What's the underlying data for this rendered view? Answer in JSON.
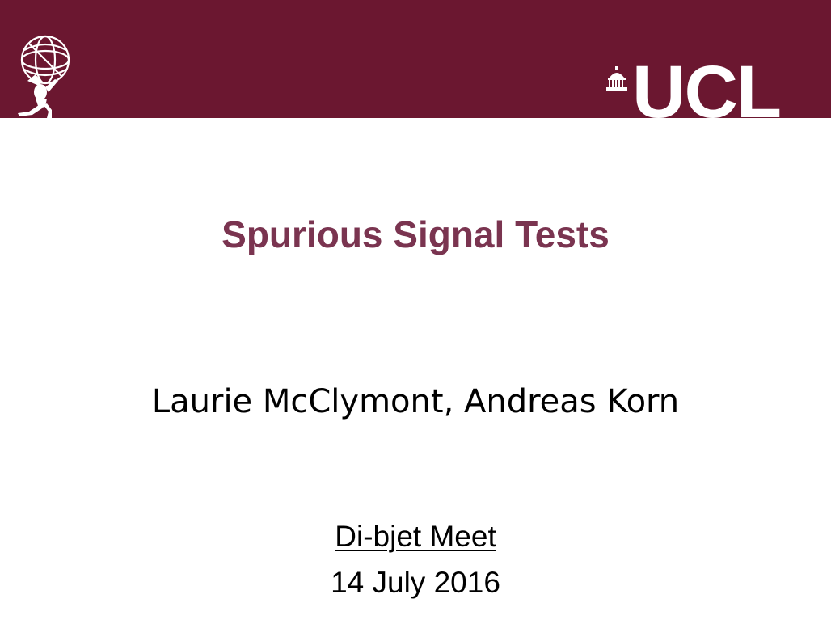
{
  "banner": {
    "color": "#6b1730",
    "left_logo_icon": "atlas-figure-globe-logo-icon",
    "right_logo_text": "UCL",
    "right_logo_icon": "ucl-dome-icon"
  },
  "slide": {
    "title": "Spurious Signal Tests",
    "title_color": "#7a3450",
    "authors": "Laurie McClymont, Andreas Korn",
    "meeting": "Di-bjet Meet",
    "date": "14 July 2016"
  }
}
